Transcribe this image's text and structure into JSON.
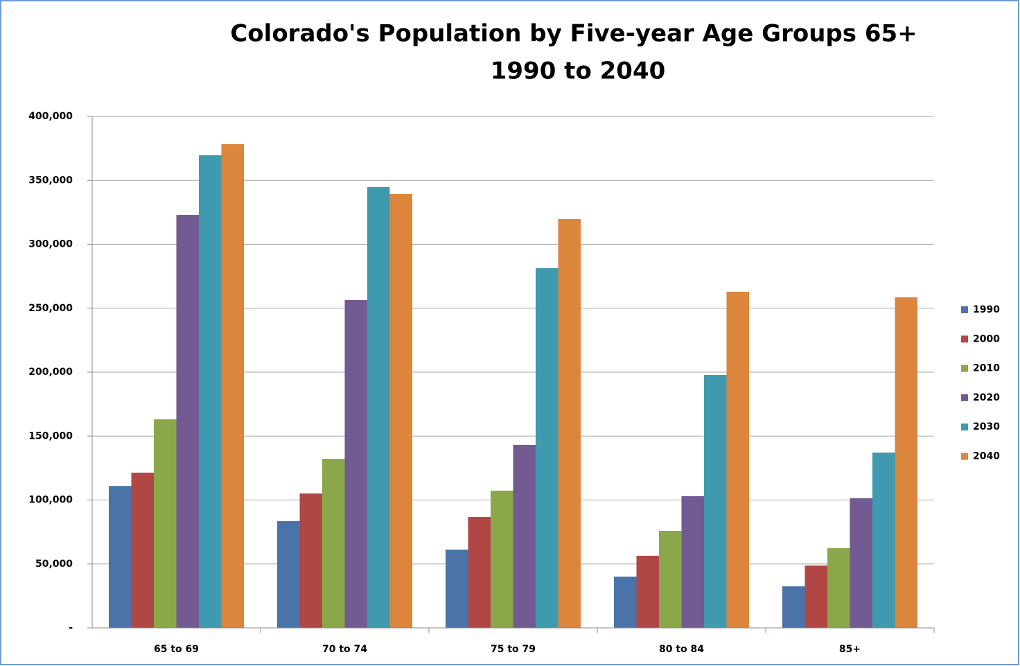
{
  "chart_data": {
    "type": "bar",
    "title": "Colorado's Population by Five-year Age Groups 65+",
    "subtitle": "1990 to 2040",
    "categories": [
      "65 to 69",
      "70 to 74",
      "75 to 79",
      "80 to 84",
      "85+"
    ],
    "series": [
      {
        "name": "1990",
        "color": "#4a73aa",
        "values": [
          111000,
          83500,
          61200,
          40100,
          32500
        ]
      },
      {
        "name": "2000",
        "color": "#b04745",
        "values": [
          121400,
          105100,
          86700,
          56400,
          48800
        ]
      },
      {
        "name": "2010",
        "color": "#8aa84a",
        "values": [
          163100,
          132200,
          107300,
          75900,
          62300
        ]
      },
      {
        "name": "2020",
        "color": "#725a92",
        "values": [
          323000,
          256400,
          143100,
          103000,
          101400
        ]
      },
      {
        "name": "2030",
        "color": "#3f9ab0",
        "values": [
          369600,
          344700,
          281300,
          197800,
          137100
        ]
      },
      {
        "name": "2040",
        "color": "#dc853d",
        "values": [
          378300,
          339300,
          319800,
          262900,
          258500
        ]
      }
    ],
    "ylim": [
      0,
      400000
    ],
    "yticks": [
      {
        "value": 0,
        "label": "-"
      },
      {
        "value": 50000,
        "label": "50,000"
      },
      {
        "value": 100000,
        "label": "100,000"
      },
      {
        "value": 150000,
        "label": "150,000"
      },
      {
        "value": 200000,
        "label": "200,000"
      },
      {
        "value": 250000,
        "label": "250,000"
      },
      {
        "value": 300000,
        "label": "300,000"
      },
      {
        "value": 350000,
        "label": "350,000"
      },
      {
        "value": 400000,
        "label": "400,000"
      }
    ],
    "grid": true,
    "legend": "right"
  }
}
